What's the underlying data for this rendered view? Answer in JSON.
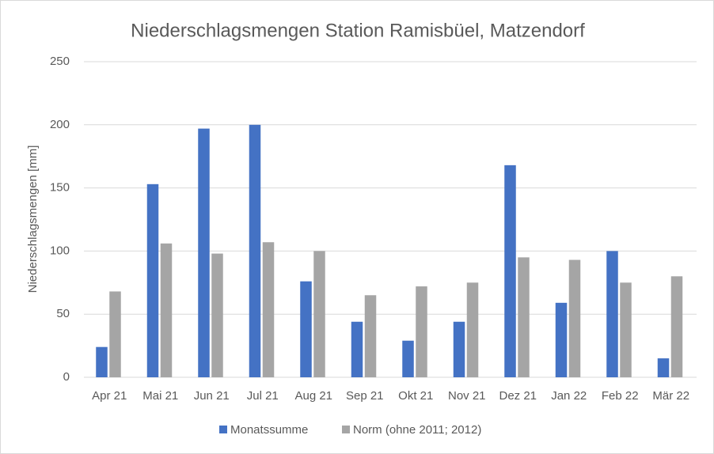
{
  "chart_data": {
    "type": "bar",
    "title": "Niederschlagsmengen Station Ramisbüel, Matzendorf",
    "y_label": "Niederschlagsmengen [mm]",
    "categories": [
      "Apr 21",
      "Mai 21",
      "Jun 21",
      "Jul 21",
      "Aug 21",
      "Sep 21",
      "Okt 21",
      "Nov 21",
      "Dez 21",
      "Jan 22",
      "Feb 22",
      "Mär 22"
    ],
    "series": [
      {
        "name": "Monatssumme",
        "color": "#4472c4",
        "values": [
          24,
          153,
          197,
          200,
          76,
          44,
          29,
          44,
          168,
          59,
          100,
          15
        ]
      },
      {
        "name": "Norm (ohne 2011; 2012)",
        "color": "#a5a5a5",
        "values": [
          68,
          106,
          98,
          107,
          100,
          65,
          72,
          75,
          95,
          93,
          75,
          80
        ]
      }
    ],
    "ylim": [
      0,
      250
    ],
    "yticks": [
      0,
      50,
      100,
      150,
      200,
      250
    ],
    "grid": true,
    "legend": "bottom"
  }
}
